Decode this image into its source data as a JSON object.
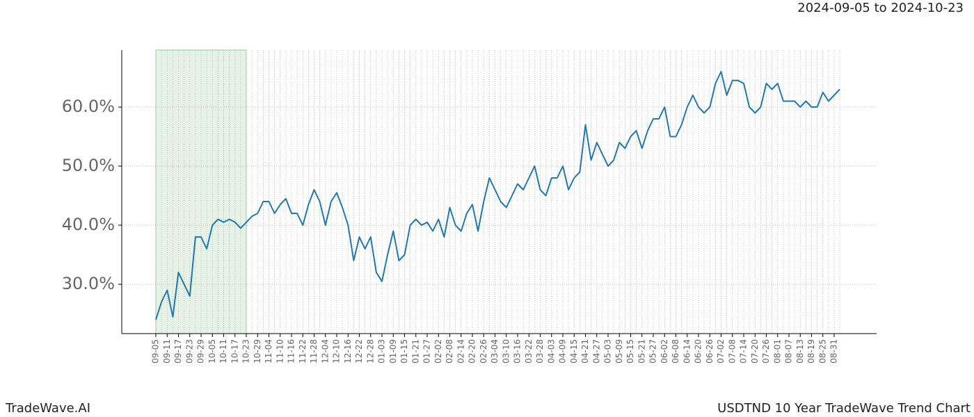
{
  "chart_data": {
    "type": "line",
    "subtitle": "2024-09-05 to 2024-10-23",
    "footer_left": "TradeWave.AI",
    "footer_right": "USDTND 10 Year TradeWave Trend Chart",
    "categories": [
      "09-05",
      null,
      "09-11",
      null,
      "09-17",
      null,
      "09-23",
      null,
      "09-29",
      null,
      "10-05",
      null,
      "10-11",
      null,
      "10-17",
      null,
      "10-23",
      null,
      "10-29",
      null,
      "11-04",
      null,
      "11-10",
      null,
      "11-16",
      null,
      "11-22",
      null,
      "11-28",
      null,
      "12-04",
      null,
      "12-10",
      null,
      "12-16",
      null,
      "12-22",
      null,
      "12-28",
      null,
      "01-03",
      null,
      "01-09",
      null,
      "01-15",
      null,
      "01-21",
      null,
      "01-27",
      null,
      "02-02",
      null,
      "02-08",
      null,
      "02-14",
      null,
      "02-20",
      null,
      "02-26",
      null,
      "03-04",
      null,
      "03-10",
      null,
      "03-16",
      null,
      "03-22",
      null,
      "03-28",
      null,
      "04-03",
      null,
      "04-09",
      null,
      "04-15",
      null,
      "04-21",
      null,
      "04-27",
      null,
      "05-03",
      null,
      "05-09",
      null,
      "05-15",
      null,
      "05-21",
      null,
      "05-27",
      null,
      "06-02",
      null,
      "06-08",
      null,
      "06-14",
      null,
      "06-20",
      null,
      "06-26",
      null,
      "07-02",
      null,
      "07-08",
      null,
      "07-14",
      null,
      "07-20",
      null,
      "07-26",
      null,
      "08-01",
      null,
      "08-07",
      null,
      "08-13",
      null,
      "08-19",
      null,
      "08-25",
      null,
      "08-31",
      null
    ],
    "series": [
      {
        "color": "#1f77b4",
        "values": [
          24,
          27,
          29,
          24.5,
          32,
          30,
          28,
          38,
          38,
          36,
          40,
          41,
          40.5,
          41,
          40.5,
          39.5,
          40.5,
          41.5,
          42,
          44,
          44,
          42,
          43.5,
          44.5,
          42,
          42,
          40,
          43.5,
          46,
          44,
          40,
          44,
          45.5,
          43,
          40,
          34,
          38,
          36,
          38,
          32,
          30.5,
          35,
          39,
          34,
          35,
          40,
          41,
          40,
          40.5,
          39,
          41,
          38,
          43,
          40,
          39,
          42,
          43.5,
          39,
          44,
          48,
          46,
          44,
          43,
          45,
          47,
          46,
          48,
          50,
          46,
          45,
          48,
          48,
          50,
          46,
          48,
          49,
          57,
          51,
          54,
          52,
          50,
          51,
          54,
          53,
          55,
          56,
          53,
          56,
          58,
          58,
          60,
          55,
          55,
          57,
          60,
          62,
          60,
          59,
          60,
          64,
          66,
          62,
          64.5,
          64.5,
          64,
          60,
          59,
          60,
          64,
          63,
          64,
          61,
          61,
          61,
          60,
          61,
          60,
          60,
          62.5,
          61,
          62,
          63
        ]
      }
    ],
    "shade": [
      "09-05",
      "10-23"
    ],
    "shade_color": "#e6f2e6",
    "ylim": [
      21.65,
      69.65
    ],
    "yticks": [
      {
        "value": 30,
        "label": "30.0%"
      },
      {
        "value": 40,
        "label": "40.0%"
      },
      {
        "value": 50,
        "label": "50.0%"
      },
      {
        "value": 60,
        "label": "60.0%"
      }
    ],
    "grid": true
  }
}
